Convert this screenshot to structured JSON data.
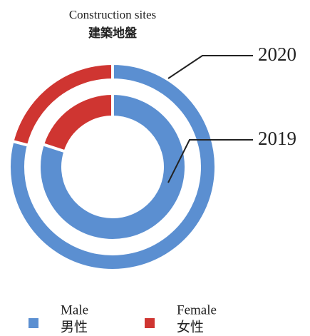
{
  "chart_data": {
    "type": "donut",
    "title": "Construction sites",
    "subtitle": "建築地盤",
    "categories": [
      "Male",
      "Female"
    ],
    "categories_zh": [
      "男性",
      "女性"
    ],
    "colors": [
      "#5b8fd1",
      "#cf3531"
    ],
    "series": [
      {
        "name": "2020",
        "values": [
          79,
          21
        ]
      },
      {
        "name": "2019",
        "values": [
          80,
          20
        ]
      }
    ]
  }
}
